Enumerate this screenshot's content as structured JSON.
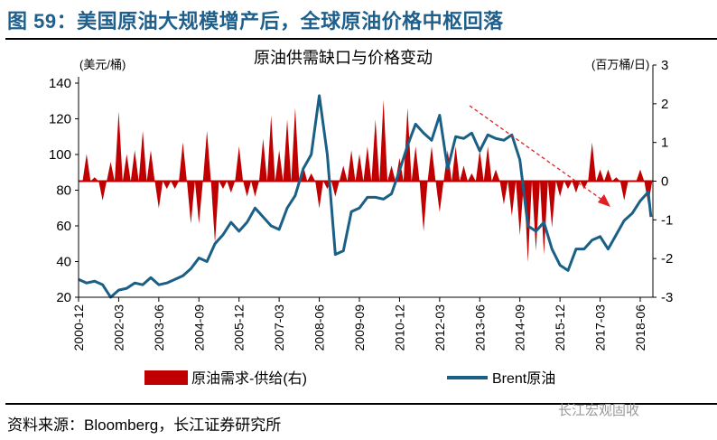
{
  "figure_title": "图 59：美国原油大规模增产后，全球原油价格中枢回落",
  "source": "资料来源：Bloomberg，长江证券研究所",
  "watermark": "长江宏观固收",
  "chart_data": {
    "type": "bar+line",
    "title": "原油供需缺口与价格变动",
    "ylabel_left": "(美元/桶)",
    "ylabel_right": "(百万桶/日)",
    "ylim_left": [
      20,
      140
    ],
    "ylim_right": [
      -3,
      3
    ],
    "yticks_left": [
      "20",
      "40",
      "60",
      "80",
      "100",
      "120",
      "140"
    ],
    "yticks_right": [
      "-3",
      "-2",
      "-1",
      "0",
      "1",
      "2",
      "3"
    ],
    "xticks": [
      "2000-12",
      "2002-03",
      "2003-06",
      "2004-09",
      "2005-12",
      "2007-03",
      "2008-06",
      "2009-09",
      "2010-12",
      "2012-03",
      "2013-06",
      "2014-09",
      "2015-12",
      "2017-03",
      "2018-06"
    ],
    "grid": false,
    "legend_position": "bottom",
    "colors": {
      "bars": "#c00000",
      "line": "#1a5f86",
      "arrow": "#e02020"
    },
    "annotation": "red dashed downward arrow from 2013 to 2017",
    "series": [
      {
        "name": "原油需求-供给(右)",
        "type": "bar",
        "axis": "right",
        "x": [
          "2001-03",
          "2001-06",
          "2001-09",
          "2001-12",
          "2002-03",
          "2002-06",
          "2002-09",
          "2002-12",
          "2003-03",
          "2003-06",
          "2003-09",
          "2003-12",
          "2004-03",
          "2004-06",
          "2004-09",
          "2004-12",
          "2005-03",
          "2005-06",
          "2005-09",
          "2005-12",
          "2006-03",
          "2006-06",
          "2006-09",
          "2006-12",
          "2007-03",
          "2007-06",
          "2007-09",
          "2007-12",
          "2008-03",
          "2008-06",
          "2008-09",
          "2008-12",
          "2009-03",
          "2009-06",
          "2009-09",
          "2009-12",
          "2010-03",
          "2010-06",
          "2010-09",
          "2010-12",
          "2011-03",
          "2011-06",
          "2011-09",
          "2011-12",
          "2012-03",
          "2012-06",
          "2012-09",
          "2012-12",
          "2013-03",
          "2013-06",
          "2013-09",
          "2013-12",
          "2014-03",
          "2014-06",
          "2014-09",
          "2014-12",
          "2015-03",
          "2015-06",
          "2015-09",
          "2015-12",
          "2016-03",
          "2016-06",
          "2016-09",
          "2016-12",
          "2017-03",
          "2017-06",
          "2017-09",
          "2017-12",
          "2018-03",
          "2018-06",
          "2018-09"
        ],
        "values": [
          0.7,
          0.1,
          -0.5,
          0.5,
          1.8,
          0.7,
          0.8,
          1.3,
          0.8,
          -0.7,
          -0.2,
          -0.2,
          1.0,
          -1.1,
          -1.1,
          1.3,
          -1.6,
          -0.2,
          -0.3,
          0.9,
          -0.4,
          -0.4,
          1.1,
          1.7,
          0.8,
          1.6,
          1.9,
          0.4,
          0.2,
          -0.7,
          -0.2,
          -0.4,
          0.4,
          0.8,
          0.7,
          0.9,
          1.6,
          2.1,
          0.4,
          0.6,
          1.9,
          0.9,
          -1.3,
          0.9,
          -0.8,
          0.8,
          0.9,
          0.4,
          0.2,
          0.8,
          0.9,
          0.3,
          -0.6,
          -0.9,
          -1.4,
          -2.1,
          -1.8,
          -1.9,
          -1.2,
          -0.4,
          -0.2,
          -0.3,
          -0.2,
          1.0,
          0.3,
          0.3,
          0.1,
          -0.5,
          0.0,
          0.3,
          -0.6
        ]
      },
      {
        "name": "Brent原油",
        "type": "line",
        "axis": "left",
        "x": [
          "2000-12",
          "2001-03",
          "2001-06",
          "2001-09",
          "2001-12",
          "2002-03",
          "2002-06",
          "2002-09",
          "2002-12",
          "2003-03",
          "2003-06",
          "2003-09",
          "2003-12",
          "2004-03",
          "2004-06",
          "2004-09",
          "2004-12",
          "2005-03",
          "2005-06",
          "2005-09",
          "2005-12",
          "2006-03",
          "2006-06",
          "2006-09",
          "2006-12",
          "2007-03",
          "2007-06",
          "2007-09",
          "2007-12",
          "2008-03",
          "2008-06",
          "2008-09",
          "2008-12",
          "2009-03",
          "2009-06",
          "2009-09",
          "2009-12",
          "2010-03",
          "2010-06",
          "2010-09",
          "2010-12",
          "2011-03",
          "2011-06",
          "2011-09",
          "2011-12",
          "2012-03",
          "2012-06",
          "2012-09",
          "2012-12",
          "2013-03",
          "2013-06",
          "2013-09",
          "2013-12",
          "2014-03",
          "2014-06",
          "2014-09",
          "2014-12",
          "2015-03",
          "2015-06",
          "2015-09",
          "2015-12",
          "2016-03",
          "2016-06",
          "2016-09",
          "2016-12",
          "2017-03",
          "2017-06",
          "2017-09",
          "2017-12",
          "2018-03",
          "2018-06",
          "2018-09",
          "2018-10"
        ],
        "values": [
          30,
          28,
          29,
          27,
          20,
          24,
          25,
          28,
          27,
          31,
          27,
          28,
          30,
          32,
          36,
          42,
          40,
          50,
          55,
          62,
          57,
          62,
          70,
          65,
          60,
          58,
          70,
          77,
          92,
          100,
          133,
          100,
          44,
          46,
          68,
          70,
          76,
          76,
          75,
          78,
          91,
          105,
          117,
          112,
          108,
          122,
          92,
          110,
          109,
          112,
          102,
          111,
          109,
          108,
          111,
          97,
          60,
          57,
          62,
          47,
          38,
          35,
          47,
          47,
          52,
          54,
          47,
          55,
          63,
          67,
          74,
          79,
          65
        ]
      }
    ]
  },
  "legend": {
    "bars": "原油需求-供给(右)",
    "line": "Brent原油"
  }
}
